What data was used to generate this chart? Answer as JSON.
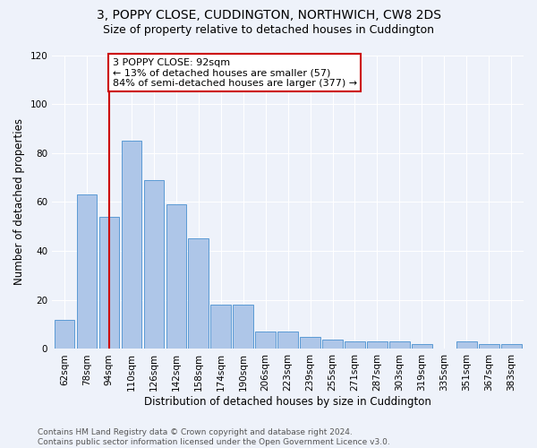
{
  "title": "3, POPPY CLOSE, CUDDINGTON, NORTHWICH, CW8 2DS",
  "subtitle": "Size of property relative to detached houses in Cuddington",
  "xlabel": "Distribution of detached houses by size in Cuddington",
  "ylabel": "Number of detached properties",
  "categories": [
    "62sqm",
    "78sqm",
    "94sqm",
    "110sqm",
    "126sqm",
    "142sqm",
    "158sqm",
    "174sqm",
    "190sqm",
    "206sqm",
    "223sqm",
    "239sqm",
    "255sqm",
    "271sqm",
    "287sqm",
    "303sqm",
    "319sqm",
    "335sqm",
    "351sqm",
    "367sqm",
    "383sqm"
  ],
  "values": [
    12,
    63,
    54,
    85,
    69,
    59,
    45,
    18,
    18,
    7,
    7,
    5,
    4,
    3,
    3,
    3,
    2,
    0,
    3,
    2,
    2
  ],
  "bar_color": "#aec6e8",
  "bar_edge_color": "#5b9bd5",
  "vline_x_index": 2,
  "vline_color": "#cc0000",
  "annotation_text": "3 POPPY CLOSE: 92sqm\n← 13% of detached houses are smaller (57)\n84% of semi-detached houses are larger (377) →",
  "annotation_box_color": "#ffffff",
  "annotation_box_edge_color": "#cc0000",
  "ylim": [
    0,
    120
  ],
  "yticks": [
    0,
    20,
    40,
    60,
    80,
    100,
    120
  ],
  "footer_text": "Contains HM Land Registry data © Crown copyright and database right 2024.\nContains public sector information licensed under the Open Government Licence v3.0.",
  "background_color": "#eef2fa",
  "grid_color": "#ffffff",
  "title_fontsize": 10,
  "subtitle_fontsize": 9,
  "label_fontsize": 8.5,
  "tick_fontsize": 7.5,
  "annotation_fontsize": 8,
  "footer_fontsize": 6.5
}
